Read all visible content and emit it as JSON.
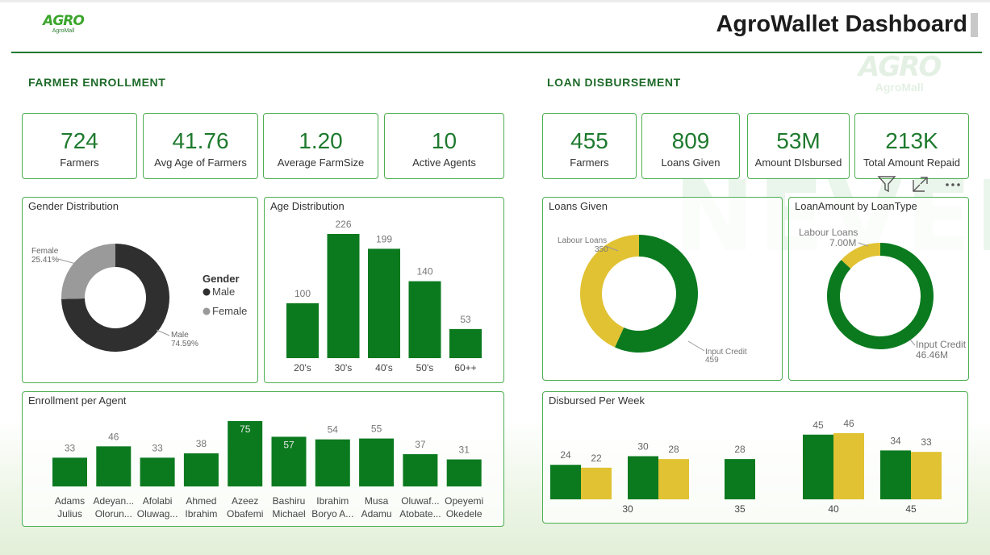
{
  "header": {
    "logo_text": "AGRO",
    "logo_sub": "AgroMall",
    "title": "AgroWallet Dashboard"
  },
  "background": {
    "watermark_logo": "AGRO",
    "watermark_sub": "AgroMall",
    "watermark_word": "NEVER"
  },
  "colors": {
    "green": "#0b7a1f",
    "yellow": "#e1c233",
    "dark": "#2f2f2f",
    "grey": "#9a9a9a",
    "accent": "#1f7a2f"
  },
  "farmer_enrollment": {
    "section_title": "FARMER ENROLLMENT",
    "kpis": [
      {
        "value": "724",
        "label": "Farmers"
      },
      {
        "value": "41.76",
        "label": "Avg Age of Farmers"
      },
      {
        "value": "1.20",
        "label": "Average FarmSize"
      },
      {
        "value": "10",
        "label": "Active Agents"
      }
    ]
  },
  "loan_disbursement": {
    "section_title": "LOAN DISBURSEMENT",
    "kpis": [
      {
        "value": "455",
        "label": "Farmers"
      },
      {
        "value": "809",
        "label": "Loans Given"
      },
      {
        "value": "53M",
        "label": "Amount DIsbursed"
      },
      {
        "value": "213K",
        "label": "Total Amount Repaid"
      }
    ]
  },
  "toolbar": {
    "icons": [
      "filter-icon",
      "expand-icon",
      "more-options-icon"
    ]
  },
  "chart_data": [
    {
      "id": "gender",
      "type": "pie",
      "title": "Gender Distribution",
      "legend_title": "Gender",
      "legend_position": "right",
      "slices": [
        {
          "name": "Male",
          "value": 74.59,
          "label": "74.59%",
          "color": "#2f2f2f"
        },
        {
          "name": "Female",
          "value": 25.41,
          "label": "25.41%",
          "color": "#9a9a9a"
        }
      ]
    },
    {
      "id": "age",
      "type": "bar",
      "title": "Age Distribution",
      "categories": [
        "20's",
        "30's",
        "40's",
        "50's",
        "60++"
      ],
      "values": [
        100,
        226,
        199,
        140,
        53
      ],
      "ylim": [
        0,
        226
      ],
      "color": "#0b7a1f"
    },
    {
      "id": "agent",
      "type": "bar",
      "title": "Enrollment per Agent",
      "categories": [
        [
          "Adams",
          "Julius"
        ],
        [
          "Adeyan...",
          "Olorun..."
        ],
        [
          "Afolabi",
          "Oluwag..."
        ],
        [
          "Ahmed",
          "Ibrahim"
        ],
        [
          "Azeez",
          "Obafemi"
        ],
        [
          "Bashiru",
          "Michael"
        ],
        [
          "Ibrahim",
          "Boryo A..."
        ],
        [
          "Musa",
          "Adamu"
        ],
        [
          "Oluwaf...",
          "Atobate..."
        ],
        [
          "Opeyemi",
          "Okedele"
        ]
      ],
      "values": [
        33,
        46,
        33,
        38,
        75,
        57,
        54,
        55,
        37,
        31
      ],
      "ylim": [
        0,
        75
      ],
      "color": "#0b7a1f"
    },
    {
      "id": "loans",
      "type": "pie",
      "title": "Loans Given",
      "slices": [
        {
          "name": "Input Credit",
          "value": 459,
          "label": "459",
          "color": "#0b7a1f"
        },
        {
          "name": "Labour Loans",
          "value": 350,
          "label": "350",
          "color": "#e1c233"
        }
      ]
    },
    {
      "id": "amount",
      "type": "pie",
      "title": "LoanAmount by LoanType",
      "slices": [
        {
          "name": "Input Credit",
          "value": 46.46,
          "label": "46.46M",
          "color": "#0b7a1f"
        },
        {
          "name": "Labour Loans",
          "value": 7.0,
          "label": "7.00M",
          "color": "#e1c233"
        }
      ]
    },
    {
      "id": "week",
      "type": "bar",
      "title": "Disbursed Per Week",
      "categories": [
        "",
        "30",
        "35",
        "40",
        "45"
      ],
      "series": [
        {
          "values": [
            24,
            30,
            28,
            45,
            34
          ],
          "color": "#0b7a1f"
        },
        {
          "values": [
            22,
            28,
            null,
            46,
            33
          ],
          "color": "#e1c233"
        }
      ],
      "ylim": [
        0,
        46
      ]
    }
  ]
}
